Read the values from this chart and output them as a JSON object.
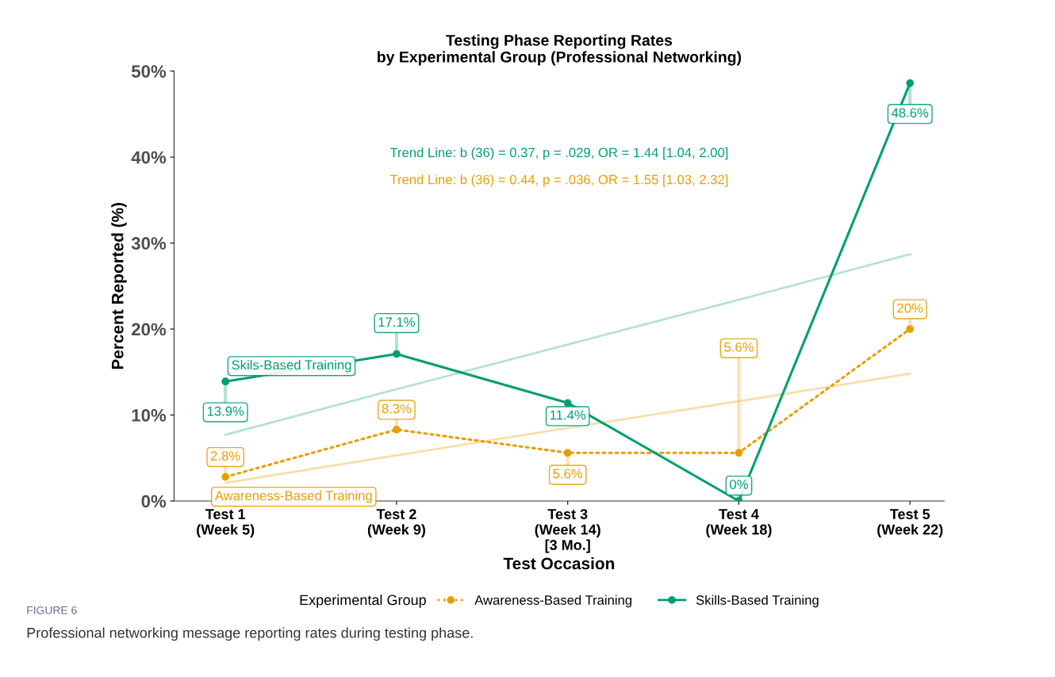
{
  "chart_data": {
    "type": "line",
    "title": "Testing Phase Reporting Rates\nby Experimental Group (Professional Networking)",
    "xlabel": "Test Occasion",
    "ylabel": "Percent Reported (%)",
    "legend_title": "Experimental Group",
    "categories": [
      "Test 1\n(Week 5)",
      "Test 2\n(Week 9)",
      "Test 3\n(Week 14)\n[3 Mo.]",
      "Test 4\n(Week 18)",
      "Test 5\n(Week 22)"
    ],
    "series": [
      {
        "name": "Awareness-Based Training",
        "color": "#e69f00",
        "values": [
          2.8,
          8.3,
          5.6,
          5.6,
          20
        ],
        "value_labels": [
          "2.8%",
          "8.3%",
          "5.6%",
          "5.6%",
          "20%"
        ],
        "line_style": "dotted",
        "marker": "circle"
      },
      {
        "name": "Skills-Based Training",
        "color": "#009e73",
        "values": [
          13.9,
          17.1,
          11.4,
          0,
          48.6
        ],
        "value_labels": [
          "13.9%",
          "17.1%",
          "11.4%",
          "0%",
          "48.6%"
        ],
        "line_style": "solid",
        "marker": "circle"
      },
      {
        "color": "#f7deab",
        "values": [
          2.1,
          5.3,
          8.5,
          11.6,
          14.8
        ],
        "line_style": "solid",
        "marker": "none"
      },
      {
        "color": "#b5e2d4",
        "values": [
          7.7,
          13.0,
          18.2,
          23.4,
          28.7
        ],
        "line_style": "solid",
        "marker": "none"
      }
    ],
    "annotations": [
      {
        "text": "Skils-Based Training",
        "x": "Test 1\n(Week 5)",
        "y": 13.9
      },
      {
        "text": "Awareness-Based Training",
        "x": "Test 1\n(Week 5)",
        "y": 2.8
      },
      "Trend Line: b (36) = 0.37, p = .029, OR = 1.44 [1.04, 2.00]",
      "Trend Line: b (36) = 0.44, p = .036, OR = 1.55 [1.03, 2.32]",
      "FIGURE 6",
      "Professional networking message reporting rates during testing phase."
    ],
    "ylim": [
      0,
      50
    ],
    "yticks": [
      {
        "value": 0,
        "label": "0%"
      },
      {
        "value": 10,
        "label": "10%"
      },
      {
        "value": 20,
        "label": "20%"
      },
      {
        "value": 30,
        "label": "30%"
      },
      {
        "value": 40,
        "label": "40%"
      },
      {
        "value": 50,
        "label": "50%"
      }
    ],
    "grid": false,
    "legend": "bottom"
  }
}
